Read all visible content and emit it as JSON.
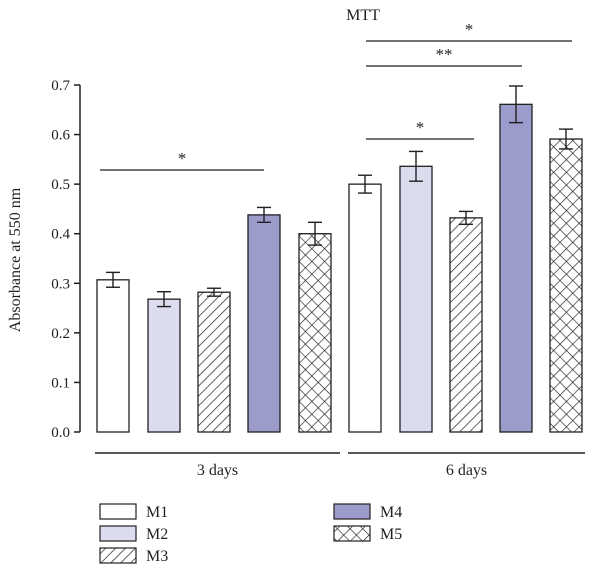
{
  "chart_data": {
    "type": "bar",
    "title": "MTT",
    "ylabel": "Absorbance at 550 nm",
    "xlabel": "",
    "ylim": [
      0,
      0.7
    ],
    "yticks": [
      "0.0",
      "0.1",
      "0.2",
      "0.3",
      "0.4",
      "0.5",
      "0.6",
      "0.7"
    ],
    "categories": [
      "3 days",
      "6 days"
    ],
    "series": [
      {
        "name": "M1",
        "values": [
          0.307,
          0.5
        ],
        "errors": [
          0.015,
          0.018
        ],
        "fill": "#ffffff",
        "pattern": "none"
      },
      {
        "name": "M2",
        "values": [
          0.268,
          0.536
        ],
        "errors": [
          0.015,
          0.03
        ],
        "fill": "#dcdcef",
        "pattern": "none"
      },
      {
        "name": "M3",
        "values": [
          0.282,
          0.432
        ],
        "errors": [
          0.008,
          0.013
        ],
        "fill": "#ffffff",
        "pattern": "diagonal-hatch"
      },
      {
        "name": "M4",
        "values": [
          0.438,
          0.661
        ],
        "errors": [
          0.015,
          0.037
        ],
        "fill": "#9c9ccc",
        "pattern": "none"
      },
      {
        "name": "M5",
        "values": [
          0.4,
          0.591
        ],
        "errors": [
          0.023,
          0.02
        ],
        "fill": "#ffffff",
        "pattern": "cross-hatch"
      }
    ],
    "significance": [
      {
        "label": "*",
        "from": "3 days / M1",
        "to": "3 days / M4"
      },
      {
        "label": "*",
        "from": "6 days / M1",
        "to": "6 days / M3"
      },
      {
        "label": "**",
        "from": "6 days / M1",
        "to": "6 days / M4"
      },
      {
        "label": "*",
        "from": "6 days / M1",
        "to": "6 days / M5"
      }
    ],
    "legend_placement": "bottom",
    "grid": false
  }
}
